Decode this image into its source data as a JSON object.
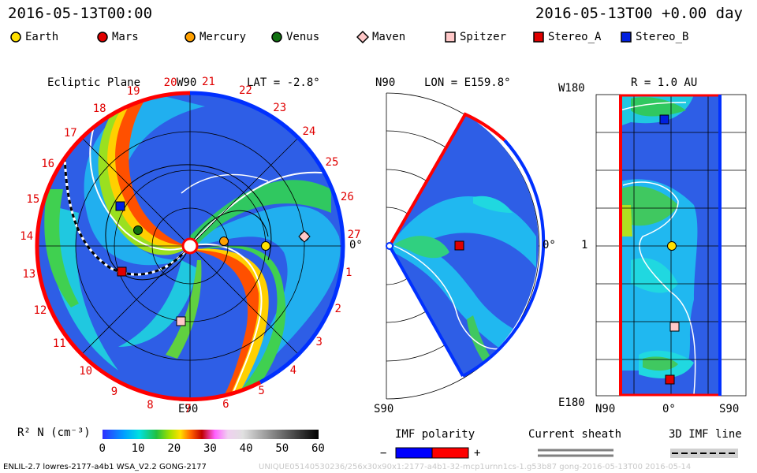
{
  "header": {
    "left_datetime": "2016-05-13T00:00",
    "right_datetime": "2016-05-13T00 +0.00 day"
  },
  "legend": [
    {
      "name": "Earth",
      "color": "#ffe000",
      "shape": "circle"
    },
    {
      "name": "Mars",
      "color": "#e00000",
      "shape": "circle"
    },
    {
      "name": "Mercury",
      "color": "#ffa000",
      "shape": "circle"
    },
    {
      "name": "Venus",
      "color": "#107010",
      "shape": "circle"
    },
    {
      "name": "Maven",
      "color": "#ffc8c8",
      "shape": "diamond"
    },
    {
      "name": "Spitzer",
      "color": "#ffc8c8",
      "shape": "square"
    },
    {
      "name": "Stereo_A",
      "color": "#e00000",
      "shape": "square"
    },
    {
      "name": "Stereo_B",
      "color": "#0020e0",
      "shape": "square"
    }
  ],
  "panels": {
    "ecliptic": {
      "title": "Ecliptic Plane",
      "top_label": "W90",
      "bottom_label": "E90",
      "right_label": "0°",
      "lat_label": "LAT = -2.8°",
      "carrington_numbers": [
        "20",
        "21",
        "22",
        "23",
        "24",
        "25",
        "26",
        "27",
        "1",
        "2",
        "3",
        "4",
        "5",
        "6",
        "7",
        "8",
        "9",
        "10",
        "11",
        "12",
        "13",
        "14",
        "15",
        "16",
        "17",
        "18",
        "19"
      ]
    },
    "meridional": {
      "top_label": "N90",
      "bottom_label": "S90",
      "right_label": "0°",
      "lon_label": "LON = E159.8°"
    },
    "shell": {
      "title": "R = 1.0 AU",
      "top_label": "W180",
      "bottom_label": "E180",
      "mid_label": "1",
      "x_labels": [
        "N90",
        "0°",
        "S90"
      ]
    }
  },
  "colorbar": {
    "label": "R² N (cm⁻³)",
    "ticks": [
      "0",
      "10",
      "20",
      "30",
      "40",
      "50",
      "60"
    ]
  },
  "keys": {
    "imf_title": "IMF polarity",
    "imf_minus": "−",
    "imf_plus": "+",
    "sheath_title": "Current sheath",
    "imf3d_title": "3D IMF line",
    "imf_neg_color": "#0000ff",
    "imf_pos_color": "#ff0000"
  },
  "footer": {
    "left_text": "ENLIL-2.7 lowres-2177-a4b1 WSA_V2.2 GONG-2177",
    "right_text": "UNIQUE05140530236/256x30x90x1:2177-a4b1-32-mcp1urnn1cs-1.g53b87 gong-2016-05-13T00 2016-05-14"
  },
  "chart_data": {
    "type": "heatmap",
    "title": "Ecliptic Plane / Meridional / R = 1.0 AU",
    "colorbar_range": [
      0,
      60
    ],
    "colorbar_label": "R² N (cm⁻³)",
    "datetime": "2016-05-13T00:00",
    "lat": -2.8,
    "lon": "E159.8",
    "radius_au": 1.0
  }
}
